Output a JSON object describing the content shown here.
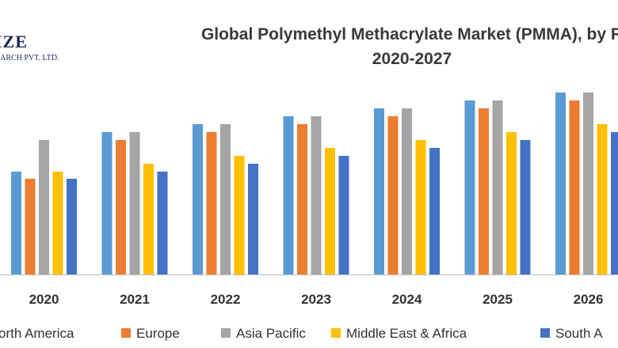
{
  "logo": {
    "brand": "IZE",
    "subtitle": "EARCH PVT. LTD."
  },
  "chart_data": {
    "type": "bar",
    "title": "Global Polymethyl Methacrylate Market (PMMA), by R",
    "subtitle": "2020-2027",
    "xlabel": "",
    "ylabel": "",
    "grid": false,
    "legend_position": "bottom",
    "ylim": [
      0,
      240
    ],
    "categories": [
      "2020",
      "2021",
      "2022",
      "2023",
      "2024",
      "2025",
      "2026"
    ],
    "series": [
      {
        "name": "orth America",
        "color": "#5b9bd5",
        "values": [
          130,
          180,
          190,
          200,
          210,
          220,
          230
        ]
      },
      {
        "name": "Europe",
        "color": "#ed7d31",
        "values": [
          121,
          170,
          180,
          190,
          200,
          210,
          220
        ]
      },
      {
        "name": "Asia Pacific",
        "color": "#a5a5a5",
        "values": [
          170,
          180,
          190,
          200,
          210,
          220,
          230
        ]
      },
      {
        "name": "Middle East & Africa",
        "color": "#ffc000",
        "values": [
          130,
          140,
          150,
          160,
          170,
          180,
          190
        ]
      },
      {
        "name": "South A",
        "color": "#4472c4",
        "values": [
          121,
          130,
          140,
          150,
          160,
          170,
          180
        ]
      }
    ]
  }
}
